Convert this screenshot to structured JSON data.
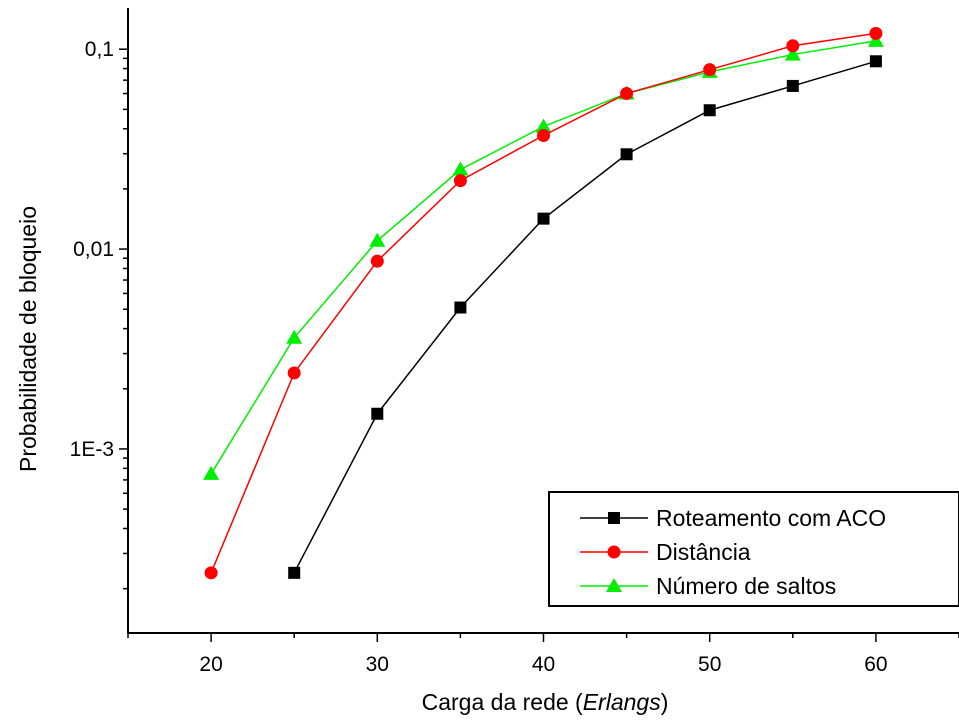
{
  "chart_data": {
    "type": "line",
    "xlabel": "Carga da rede (",
    "xlabel_em": "Erlangs",
    "xlabel_end": ")",
    "ylabel": "Probabilidade de bloqueio",
    "y_scale": "log",
    "xlim": [
      15,
      65
    ],
    "ylim": [
      0.00012,
      0.15
    ],
    "x_ticks": [
      20,
      30,
      40,
      50,
      60
    ],
    "x_tick_labels": [
      "20",
      "30",
      "40",
      "50",
      "60"
    ],
    "y_ticks": [
      0.001,
      0.01,
      0.1
    ],
    "y_tick_labels": [
      "1E-3",
      "0,01",
      "0,1"
    ],
    "legend_position": "bottom-right",
    "series": [
      {
        "name": "Roteamento com ACO",
        "color": "#000000",
        "marker": "square",
        "x": [
          25,
          30,
          35,
          40,
          45,
          50,
          55,
          60
        ],
        "y": [
          0.00024,
          0.0015,
          0.0051,
          0.0142,
          0.0298,
          0.0495,
          0.0655,
          0.087
        ]
      },
      {
        "name": "Distância",
        "color": "#ff0000",
        "marker": "circle",
        "x": [
          20,
          25,
          30,
          35,
          40,
          45,
          50,
          55,
          60
        ],
        "y": [
          0.00024,
          0.0024,
          0.0087,
          0.022,
          0.037,
          0.06,
          0.079,
          0.104,
          0.12
        ]
      },
      {
        "name": "Número de saltos",
        "color": "#00ee00",
        "marker": "triangle",
        "x": [
          20,
          25,
          30,
          35,
          40,
          45,
          50,
          55,
          60
        ],
        "y": [
          0.00075,
          0.0036,
          0.011,
          0.025,
          0.041,
          0.06,
          0.077,
          0.094,
          0.11
        ]
      }
    ]
  }
}
